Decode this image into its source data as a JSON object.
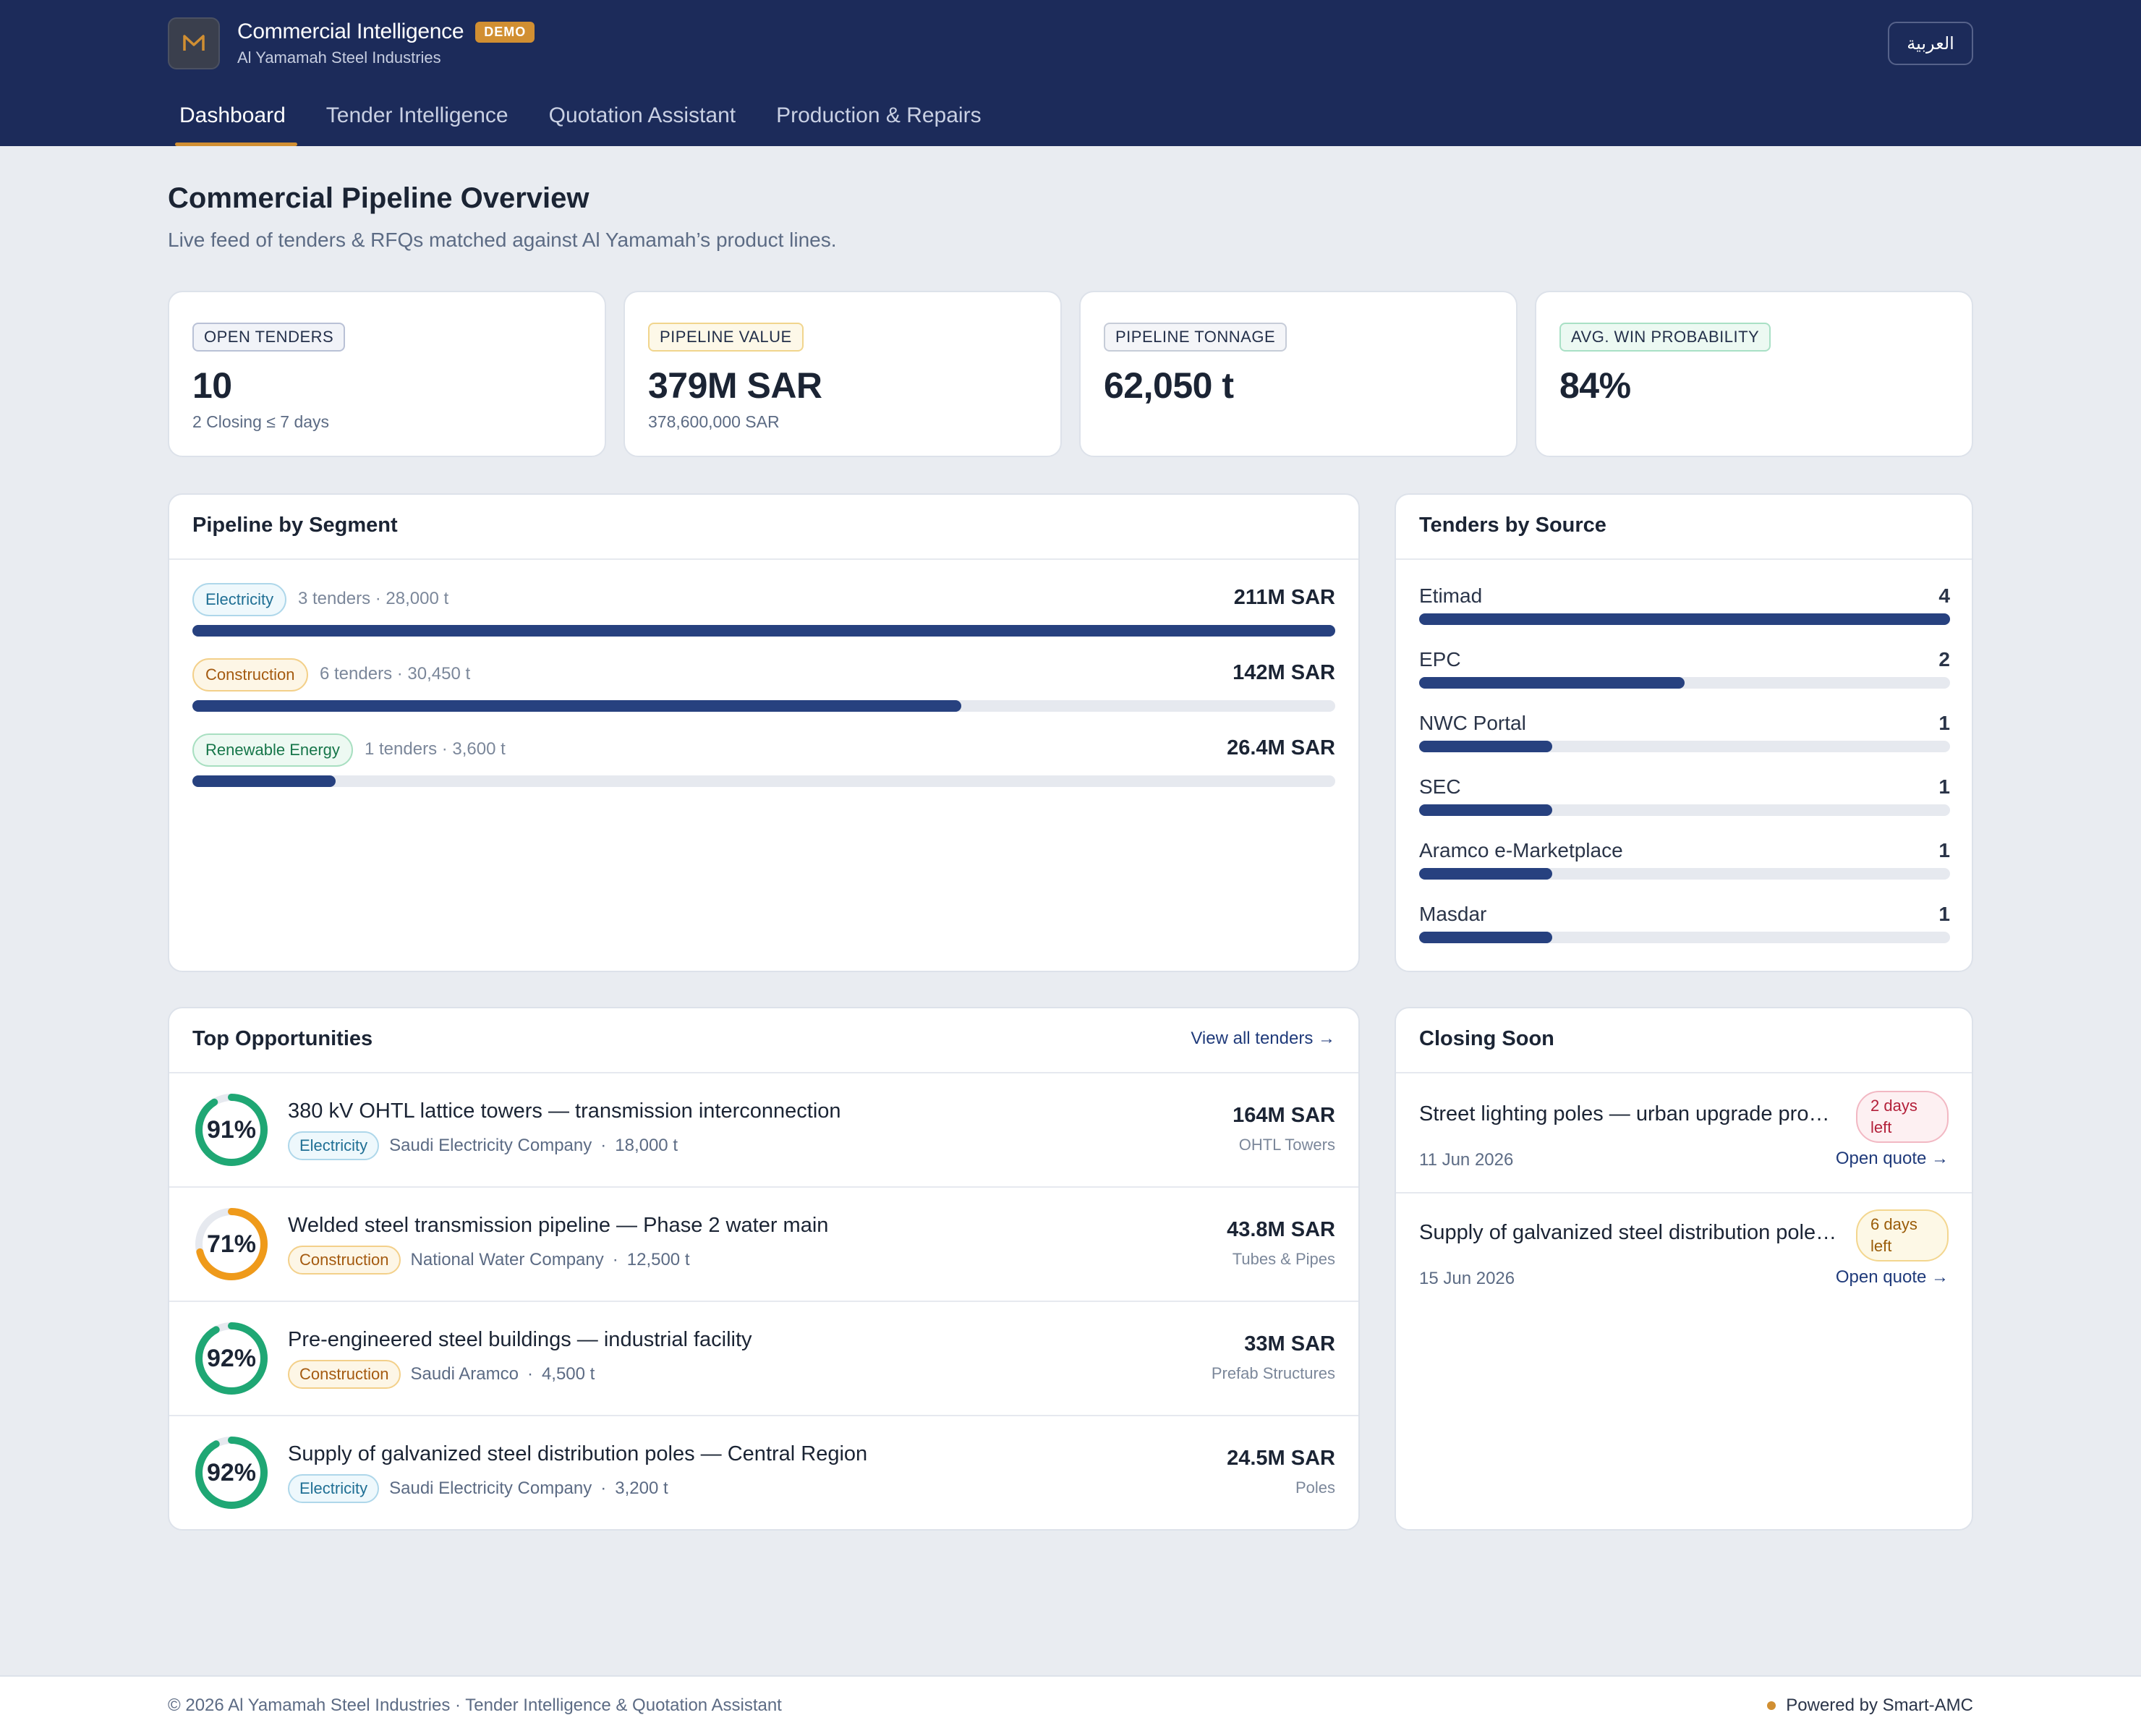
{
  "header": {
    "app_title": "Commercial Intelligence",
    "badge": "DEMO",
    "company": "Al Yamamah Steel Industries",
    "language_button": "العربية",
    "logo_icon": "steel-m-logo-icon",
    "accent_color": "#d18f32",
    "background_color": "#1c2b5a"
  },
  "nav": {
    "tabs": [
      {
        "label": "Dashboard",
        "active": true
      },
      {
        "label": "Tender Intelligence",
        "active": false
      },
      {
        "label": "Quotation Assistant",
        "active": false
      },
      {
        "label": "Production & Repairs",
        "active": false
      }
    ]
  },
  "page": {
    "title": "Commercial Pipeline Overview",
    "subtitle": "Live feed of tenders & RFQs matched against Al Yamamah’s product lines."
  },
  "kpis": [
    {
      "label": "OPEN TENDERS",
      "value": "10",
      "sub": "2 Closing ≤ 7 days",
      "border": "#b9c1d6",
      "bg": "#f1f3f8"
    },
    {
      "label": "PIPELINE VALUE",
      "value": "379M SAR",
      "sub": "378,600,000 SAR",
      "border": "#f1d58d",
      "bg": "#fdf8e8"
    },
    {
      "label": "PIPELINE TONNAGE",
      "value": "62,050 t",
      "sub": "",
      "border": "#c6ccd8",
      "bg": "#f4f5f8"
    },
    {
      "label": "AVG. WIN PROBABILITY",
      "value": "84%",
      "sub": "",
      "border": "#a9e0c5",
      "bg": "#ecf9f2"
    }
  ],
  "segments": {
    "title": "Pipeline by Segment",
    "rows": [
      {
        "chip": "Electricity",
        "meta": "3 tenders · 28,000 t",
        "value": "211M SAR",
        "share": 1.0,
        "chip_color": "#1f6f94",
        "chip_border": "#aed7ea",
        "chip_bg": "#eef8fc"
      },
      {
        "chip": "Construction",
        "meta": "6 tenders · 30,450 t",
        "value": "142M SAR",
        "share": 0.673,
        "chip_color": "#a45a10",
        "chip_border": "#f3d08a",
        "chip_bg": "#fdf6e6"
      },
      {
        "chip": "Renewable Energy",
        "meta": "1 tenders · 3,600 t",
        "value": "26.4M SAR",
        "share": 0.125,
        "chip_color": "#17764a",
        "chip_border": "#a8dfc1",
        "chip_bg": "#edf9f2"
      }
    ]
  },
  "sources": {
    "title": "Tenders by Source",
    "rows": [
      {
        "name": "Etimad",
        "count": "4",
        "share": 1.0
      },
      {
        "name": "EPC",
        "count": "2",
        "share": 0.5
      },
      {
        "name": "NWC Portal",
        "count": "1",
        "share": 0.25
      },
      {
        "name": "SEC",
        "count": "1",
        "share": 0.25
      },
      {
        "name": "Aramco e-Marketplace",
        "count": "1",
        "share": 0.25
      },
      {
        "name": "Masdar",
        "count": "1",
        "share": 0.25
      }
    ]
  },
  "opportunities": {
    "title": "Top Opportunities",
    "view_all": "View all tenders →",
    "rows": [
      {
        "pct": "91%",
        "prob": 0.91,
        "ring_color": "#1fa774",
        "title": "380 kV OHTL lattice towers — transmission interconnection",
        "chip": "Electricity",
        "chip_color": "#1f6f94",
        "chip_border": "#aed7ea",
        "chip_bg": "#eef8fc",
        "client": "Saudi Electricity Company",
        "tons": "18,000 t",
        "value": "164M SAR",
        "category": "OHTL Towers"
      },
      {
        "pct": "71%",
        "prob": 0.71,
        "ring_color": "#ef9a1a",
        "title": "Welded steel transmission pipeline — Phase 2 water main",
        "chip": "Construction",
        "chip_color": "#a45a10",
        "chip_border": "#f3d08a",
        "chip_bg": "#fdf6e6",
        "client": "National Water Company",
        "tons": "12,500 t",
        "value": "43.8M SAR",
        "category": "Tubes & Pipes"
      },
      {
        "pct": "92%",
        "prob": 0.92,
        "ring_color": "#1fa774",
        "title": "Pre-engineered steel buildings — industrial facility",
        "chip": "Construction",
        "chip_color": "#a45a10",
        "chip_border": "#f3d08a",
        "chip_bg": "#fdf6e6",
        "client": "Saudi Aramco",
        "tons": "4,500 t",
        "value": "33M SAR",
        "category": "Prefab Structures"
      },
      {
        "pct": "92%",
        "prob": 0.92,
        "ring_color": "#1fa774",
        "title": "Supply of galvanized steel distribution poles — Central Region",
        "chip": "Electricity",
        "chip_color": "#1f6f94",
        "chip_border": "#aed7ea",
        "chip_bg": "#eef8fc",
        "client": "Saudi Electricity Company",
        "tons": "3,200 t",
        "value": "24.5M SAR",
        "category": "Poles"
      }
    ]
  },
  "closing": {
    "title": "Closing Soon",
    "rows": [
      {
        "title": "Street lighting poles — urban upgrade program",
        "badge": "2 days left",
        "badge_color": "#b3203a",
        "badge_border": "#f2b8c3",
        "badge_bg": "#fdf0f2",
        "date": "11 Jun 2026",
        "link": "Open quote →"
      },
      {
        "title": "Supply of galvanized steel distribution poles — Central Region",
        "badge": "6 days left",
        "badge_color": "#9a5c08",
        "badge_border": "#f3d68f",
        "badge_bg": "#fdf8e6",
        "date": "15 Jun 2026",
        "link": "Open quote →"
      }
    ]
  },
  "footer": {
    "left": "© 2026 Al Yamamah Steel Industries · Tender Intelligence & Quotation Assistant",
    "right": "Powered by Smart-AMC"
  }
}
